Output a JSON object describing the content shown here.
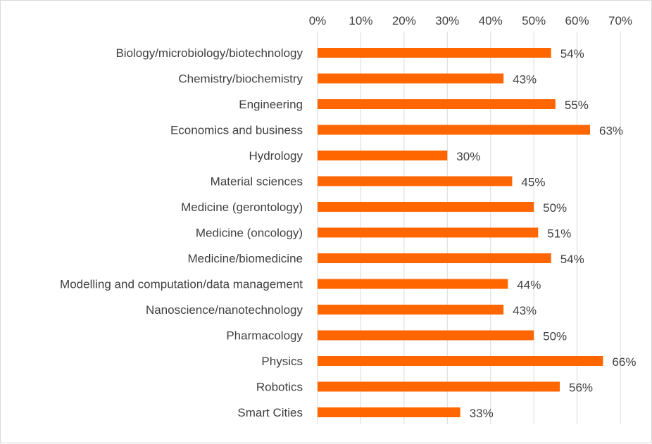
{
  "chart_data": {
    "type": "bar",
    "orientation": "horizontal",
    "title": "",
    "xlabel": "",
    "ylabel": "",
    "categories": [
      "Biology/microbiology/biotechnology",
      "Chemistry/biochemistry",
      "Engineering",
      "Economics and business",
      "Hydrology",
      "Material sciences",
      "Medicine (gerontology)",
      "Medicine (oncology)",
      "Medicine/biomedicine",
      "Modelling and computation/data management",
      "Nanoscience/nanotechnology",
      "Pharmacology",
      "Physics",
      "Robotics",
      "Smart Cities"
    ],
    "values": [
      54,
      43,
      55,
      63,
      30,
      45,
      50,
      51,
      54,
      44,
      43,
      50,
      66,
      56,
      33
    ],
    "value_labels": [
      "54%",
      "43%",
      "55%",
      "63%",
      "30%",
      "45%",
      "50%",
      "51%",
      "54%",
      "44%",
      "43%",
      "50%",
      "66%",
      "56%",
      "33%"
    ],
    "x_axis": {
      "position": "top",
      "min": 0,
      "max": 70,
      "ticks": [
        0,
        10,
        20,
        30,
        40,
        50,
        60,
        70
      ],
      "tick_labels": [
        "0%",
        "10%",
        "20%",
        "30%",
        "40%",
        "50%",
        "60%",
        "70%"
      ]
    },
    "grid": true,
    "legend": "none",
    "bar_color": "#ff6600"
  }
}
